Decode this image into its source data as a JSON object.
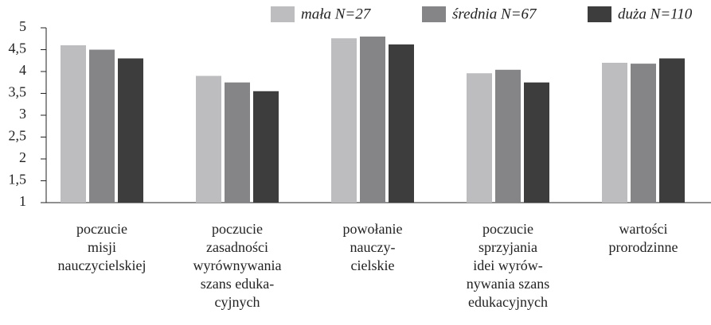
{
  "chart_data": {
    "type": "bar",
    "categories": [
      [
        "poczucie",
        "misji",
        "nauczycielskiej"
      ],
      [
        "poczucie",
        "zasadności",
        "wyrównywania",
        "szans eduka-",
        "cyjnych"
      ],
      [
        "powołanie",
        "nauczy-",
        "cielskie"
      ],
      [
        "poczucie",
        "sprzyjania",
        "idei wyrów-",
        "nywania szans",
        "edukacyjnych"
      ],
      [
        "wartości",
        "prorodzinne"
      ]
    ],
    "series": [
      {
        "name": "mała N=27",
        "color": "#bdbdbf",
        "values": [
          4.6,
          3.9,
          4.76,
          3.96,
          4.2
        ]
      },
      {
        "name": "średnia N=67",
        "color": "#858587",
        "values": [
          4.5,
          3.75,
          4.8,
          4.04,
          4.18
        ]
      },
      {
        "name": "duża N=110",
        "color": "#3d3d3d",
        "values": [
          4.3,
          3.55,
          4.62,
          3.75,
          4.3
        ]
      }
    ],
    "ylim": [
      1,
      5
    ],
    "yticks": [
      1,
      {
        "value": 1.5,
        "label": "1,5"
      },
      2,
      {
        "value": 2.5,
        "label": "2,5"
      },
      3,
      {
        "value": 3.5,
        "label": "3,5"
      },
      4,
      {
        "value": 4.5,
        "label": "4,5"
      },
      5
    ],
    "legend": "top-right"
  }
}
